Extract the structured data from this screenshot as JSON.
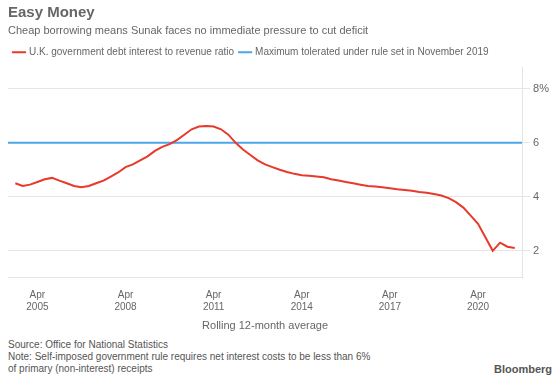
{
  "chart_data": {
    "type": "line",
    "title": "Easy Money",
    "subtitle": "Cheap borrowing means Sunak faces no immediate pressure to cut deficit",
    "xlabel": "Rolling 12-month average",
    "annotations": [
      "Source: Office for National Statistics",
      "Note: Self-imposed government rule requires net interest costs to be less than 6%\nof primary (non-interest) receipts",
      "Bloomberg"
    ],
    "series": [
      {
        "name": "U.K. government debt interest to revenue ratio",
        "color": "#e8392a",
        "x": [
          2004.25,
          2004.5,
          2004.75,
          2005.0,
          2005.25,
          2005.5,
          2005.75,
          2006.0,
          2006.25,
          2006.5,
          2006.75,
          2007.0,
          2007.25,
          2007.5,
          2007.75,
          2008.0,
          2008.25,
          2008.5,
          2008.75,
          2009.0,
          2009.25,
          2009.5,
          2009.75,
          2010.0,
          2010.25,
          2010.5,
          2010.75,
          2011.0,
          2011.25,
          2011.5,
          2011.75,
          2012.0,
          2012.25,
          2012.5,
          2012.75,
          2013.0,
          2013.25,
          2013.5,
          2013.75,
          2014.0,
          2014.25,
          2014.5,
          2014.75,
          2015.0,
          2015.25,
          2015.5,
          2015.75,
          2016.0,
          2016.25,
          2016.5,
          2016.75,
          2017.0,
          2017.25,
          2017.5,
          2017.75,
          2018.0,
          2018.25,
          2018.5,
          2018.75,
          2019.0,
          2019.25,
          2019.5,
          2019.75,
          2020.0,
          2020.25,
          2020.5,
          2020.75,
          2021.0,
          2021.25
        ],
        "values": [
          4.5,
          4.4,
          4.45,
          4.55,
          4.65,
          4.7,
          4.6,
          4.5,
          4.4,
          4.35,
          4.4,
          4.5,
          4.6,
          4.75,
          4.9,
          5.1,
          5.2,
          5.35,
          5.5,
          5.7,
          5.85,
          5.95,
          6.1,
          6.3,
          6.5,
          6.6,
          6.62,
          6.6,
          6.5,
          6.3,
          6.0,
          5.75,
          5.55,
          5.35,
          5.2,
          5.1,
          5.0,
          4.92,
          4.85,
          4.8,
          4.78,
          4.75,
          4.72,
          4.65,
          4.6,
          4.55,
          4.5,
          4.45,
          4.4,
          4.38,
          4.35,
          4.32,
          4.28,
          4.25,
          4.22,
          4.18,
          4.15,
          4.1,
          4.05,
          3.95,
          3.8,
          3.6,
          3.3,
          3.0,
          2.5,
          2.0,
          2.3,
          2.15,
          2.1
        ]
      },
      {
        "name": "Maximum tolerated under rule set in November 2019",
        "color": "#4da6e8",
        "x": [
          2004.0,
          2021.5
        ],
        "values": [
          6.0,
          6.0
        ]
      }
    ],
    "xlim": [
      2004.0,
      2021.5
    ],
    "xticks": [
      {
        "value": 2005,
        "label": "Apr\n2005"
      },
      {
        "value": 2008,
        "label": "Apr\n2008"
      },
      {
        "value": 2011,
        "label": "Apr\n2011"
      },
      {
        "value": 2014,
        "label": "Apr\n2014"
      },
      {
        "value": 2017,
        "label": "Apr\n2017"
      },
      {
        "value": 2020,
        "label": "Apr\n2020"
      }
    ],
    "ylim": [
      1.0,
      8.8
    ],
    "yticks": [
      2,
      4,
      6,
      {
        "value": 8,
        "label": "8%"
      }
    ],
    "grid": true,
    "legend": "top"
  }
}
